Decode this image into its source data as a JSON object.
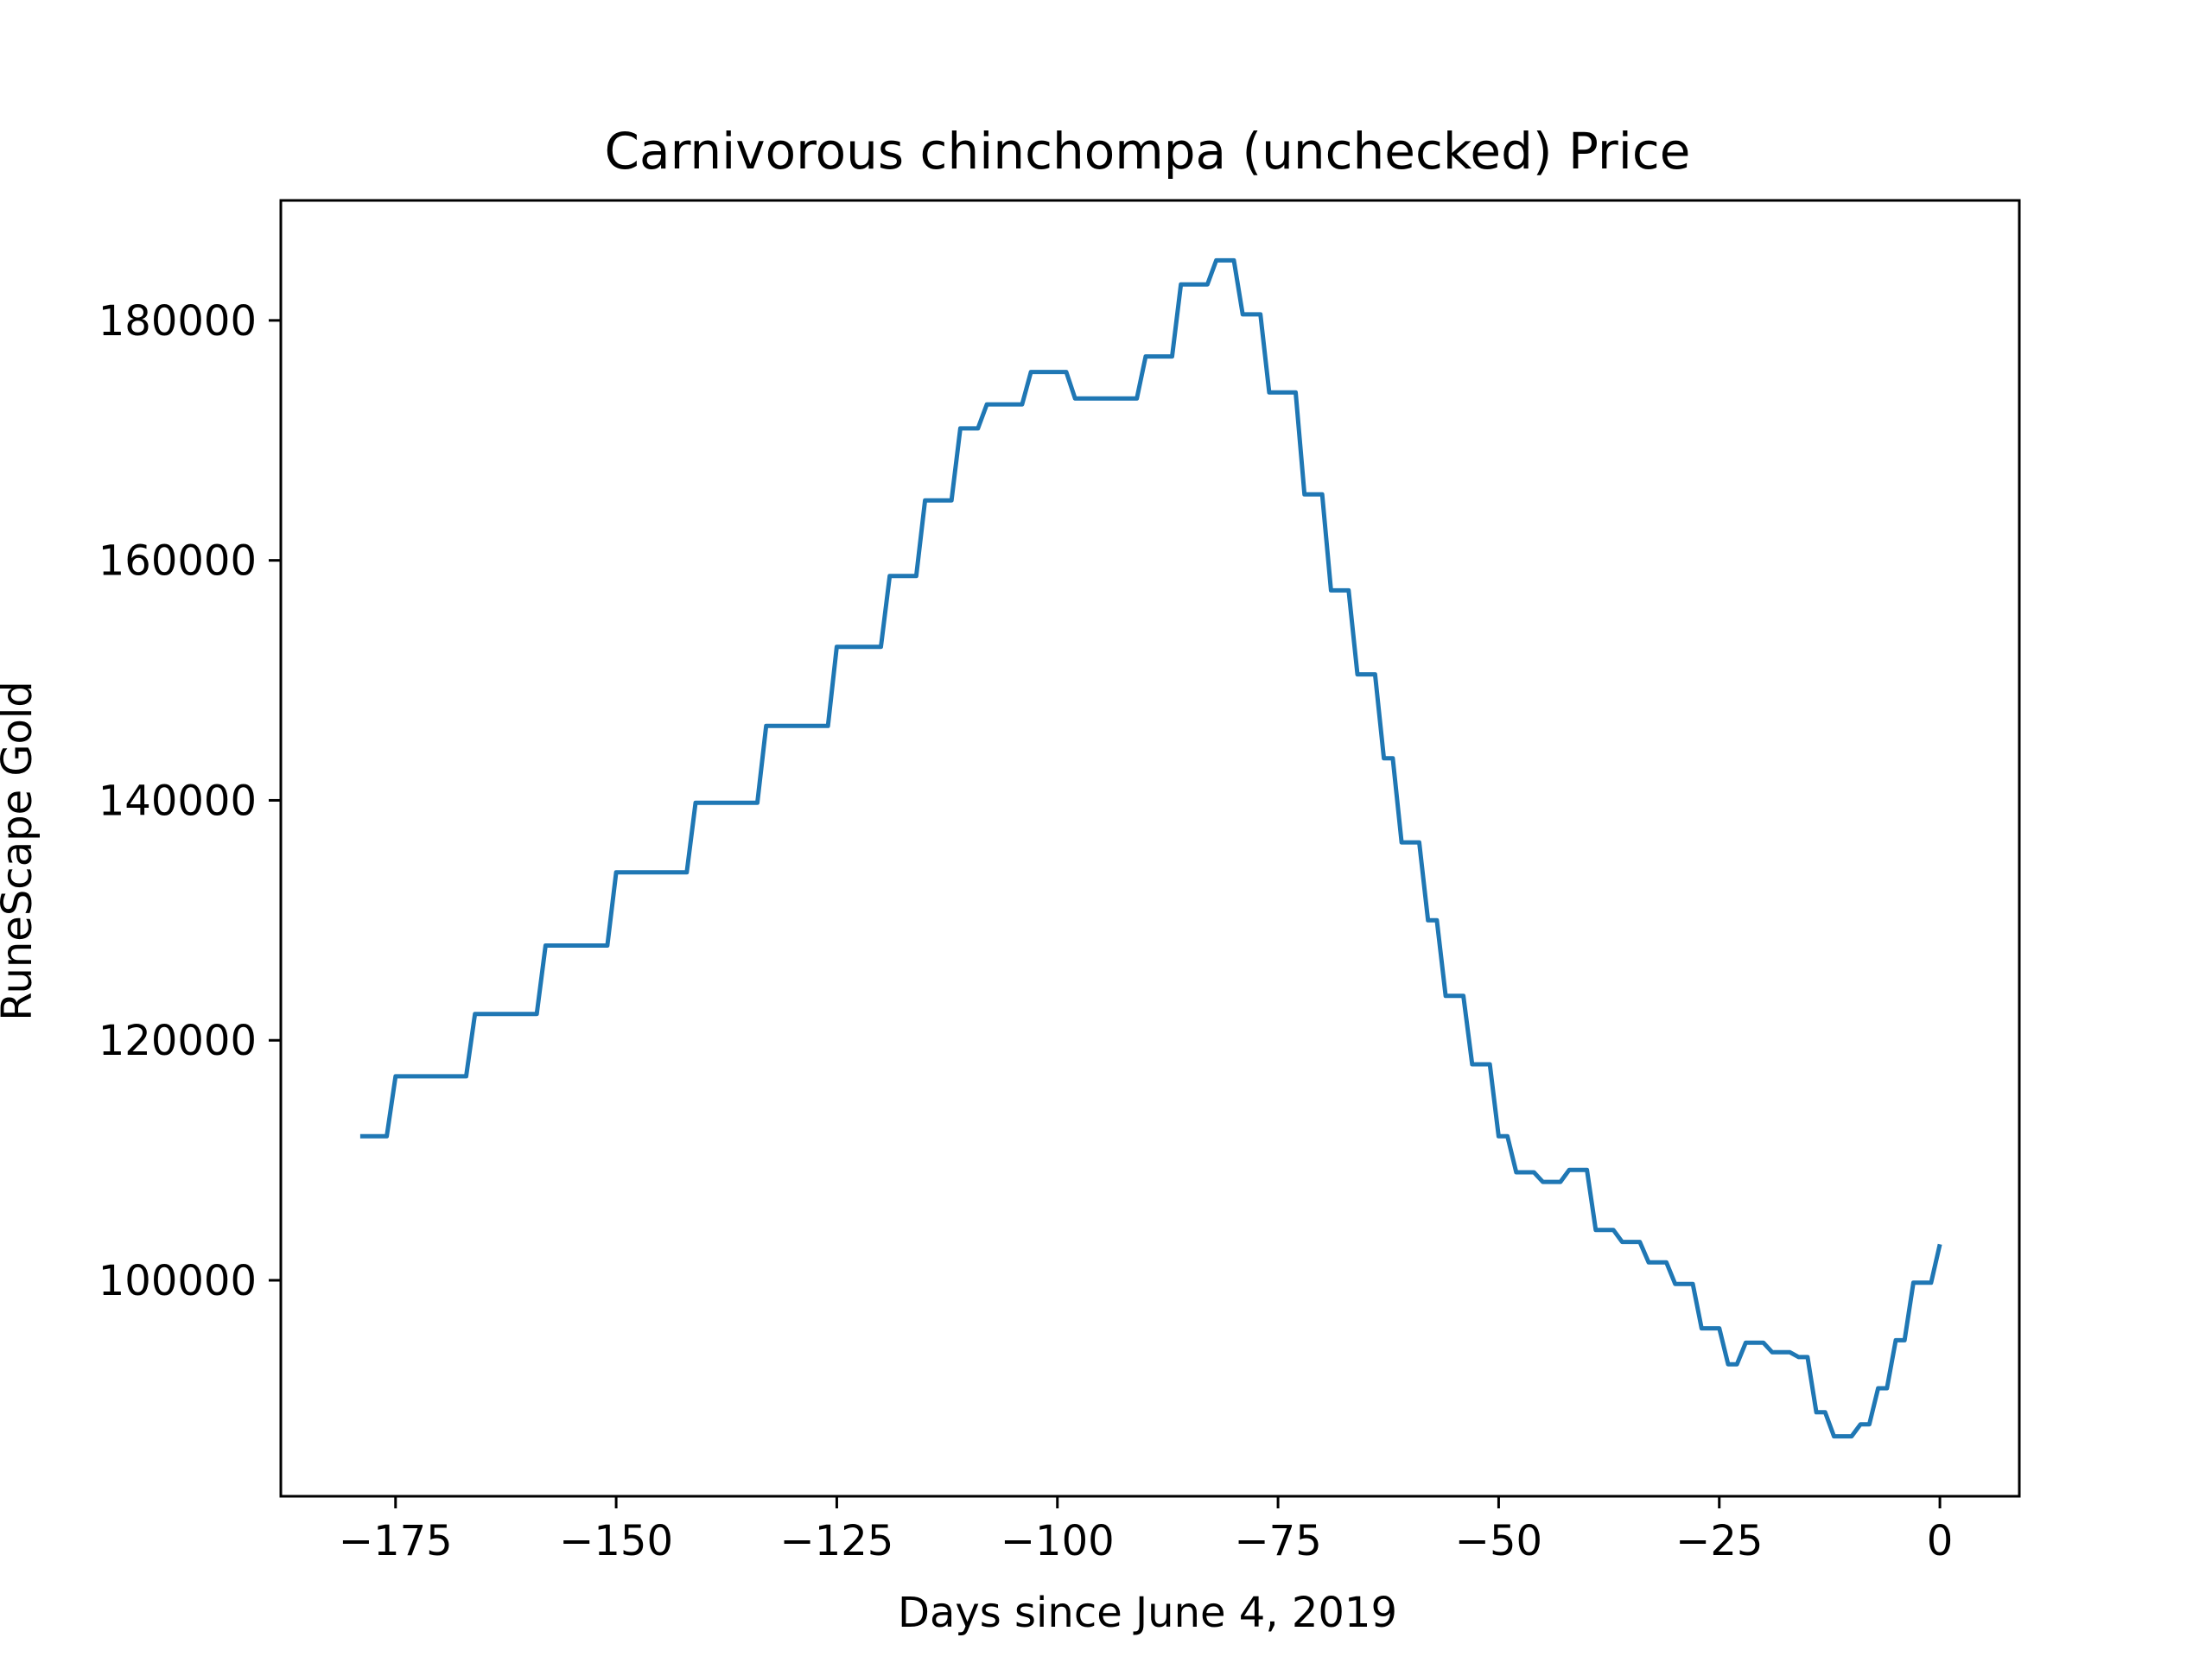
{
  "chart_data": {
    "type": "line",
    "title": "Carnivorous chinchompa (unchecked) Price",
    "xlabel": "Days since June 4, 2019",
    "ylabel": "RuneScape Gold",
    "xlim": [
      -188,
      9
    ],
    "ylim": [
      82000,
      190000
    ],
    "xticks": [
      -175,
      -150,
      -125,
      -100,
      -75,
      -50,
      -25,
      0
    ],
    "xtick_labels": [
      "−175",
      "−150",
      "−125",
      "−100",
      "−75",
      "−50",
      "−25",
      "0"
    ],
    "yticks": [
      100000,
      120000,
      140000,
      160000,
      180000
    ],
    "ytick_labels": [
      "100000",
      "120000",
      "140000",
      "160000",
      "180000"
    ],
    "grid": false,
    "line_color": "#1f77b4",
    "series": [
      {
        "x": [
          -179,
          -176,
          -175,
          -167,
          -166,
          -159,
          -158,
          -151,
          -150,
          -142,
          -141,
          -134,
          -133,
          -126,
          -125,
          -120,
          -119,
          -116,
          -115,
          -112,
          -111,
          -109,
          -108,
          -104,
          -103,
          -99,
          -98,
          -91,
          -90,
          -87,
          -86,
          -83,
          -82,
          -80,
          -79,
          -77,
          -76,
          -73,
          -72,
          -70,
          -69,
          -67,
          -66,
          -64,
          -63,
          -62,
          -61,
          -59,
          -58,
          -57,
          -56,
          -54,
          -53,
          -51,
          -50,
          -49,
          -48,
          -46,
          -45,
          -43,
          -42,
          -40,
          -39,
          -37,
          -36,
          -34,
          -33,
          -31,
          -30,
          -28,
          -27,
          -25,
          -24,
          -23,
          -22,
          -20,
          -19,
          -17,
          -16,
          -15,
          -14,
          -13,
          -12,
          -10,
          -9,
          -8,
          -7,
          -6,
          -5,
          -4,
          -3,
          -1,
          0
        ],
        "y": [
          112000,
          112000,
          117000,
          117000,
          122200,
          122200,
          127900,
          127900,
          134000,
          134000,
          139800,
          139800,
          146200,
          146200,
          152800,
          152800,
          158700,
          158700,
          165000,
          165000,
          171000,
          171000,
          173000,
          173000,
          175700,
          175700,
          173500,
          173500,
          177000,
          177000,
          183000,
          183000,
          185000,
          185000,
          180500,
          180500,
          174000,
          174000,
          165500,
          165500,
          157500,
          157500,
          150500,
          150500,
          143500,
          143500,
          136500,
          136500,
          130000,
          130000,
          123700,
          123700,
          118000,
          118000,
          112000,
          112000,
          109000,
          109000,
          108200,
          108200,
          109200,
          109200,
          104200,
          104200,
          103200,
          103200,
          101500,
          101500,
          99700,
          99700,
          96000,
          96000,
          93000,
          93000,
          94800,
          94800,
          94000,
          94000,
          93600,
          93600,
          89000,
          89000,
          87000,
          87000,
          88000,
          88000,
          91000,
          91000,
          95000,
          95000,
          99800,
          99800,
          103000
        ]
      }
    ]
  }
}
